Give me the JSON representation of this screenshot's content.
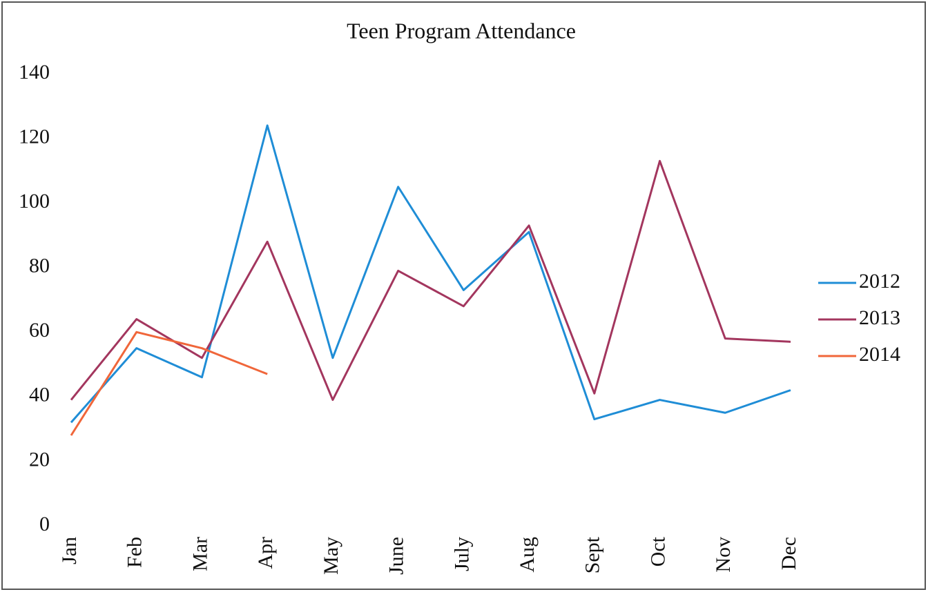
{
  "chart_data": {
    "type": "line",
    "title": "Teen Program Attendance",
    "categories": [
      "Jan",
      "Feb",
      "Mar",
      "Apr",
      "May",
      "June",
      "July",
      "Aug",
      "Sept",
      "Oct",
      "Nov",
      "Dec"
    ],
    "series": [
      {
        "name": "2012",
        "color": "#1f8dd6",
        "values": [
          32,
          55,
          46,
          124,
          52,
          105,
          73,
          91,
          33,
          39,
          35,
          42
        ]
      },
      {
        "name": "2013",
        "color": "#a3365e",
        "values": [
          39,
          64,
          52,
          88,
          39,
          79,
          68,
          93,
          41,
          113,
          58,
          57
        ]
      },
      {
        "name": "2014",
        "color": "#f0663a",
        "values": [
          28,
          60,
          55,
          47,
          null,
          null,
          null,
          null,
          null,
          null,
          null,
          null
        ]
      }
    ],
    "ylim": [
      0,
      140
    ],
    "yticks": [
      0,
      20,
      40,
      60,
      80,
      100,
      120,
      140
    ],
    "grid": false,
    "legend": "right"
  }
}
